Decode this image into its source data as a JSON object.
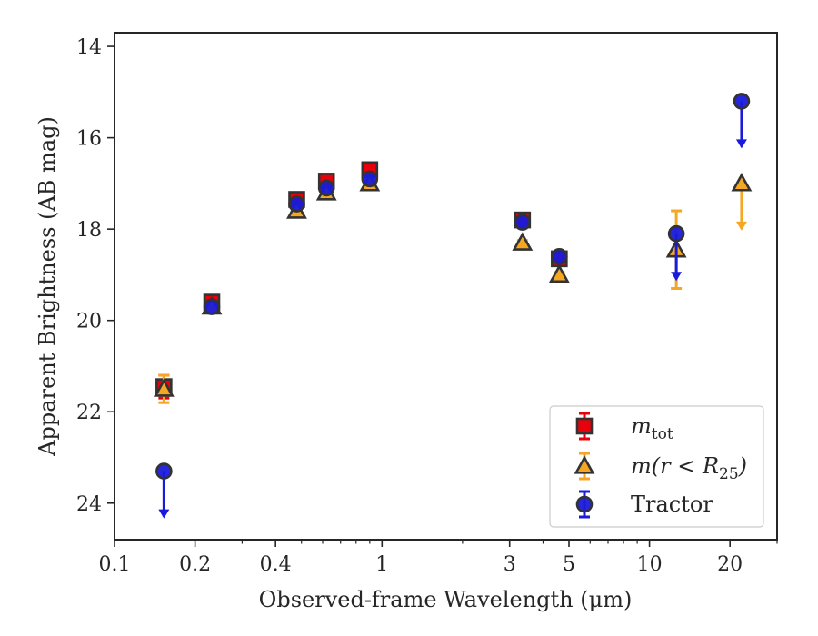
{
  "chart_data": {
    "type": "scatter",
    "title": "",
    "xlabel": "Observed-frame Wavelength (μm)",
    "ylabel": "Apparent Brightness (AB mag)",
    "xscale": "log",
    "xlim": [
      0.1,
      30
    ],
    "ylim": [
      24.8,
      13.7
    ],
    "y_inverted": true,
    "x_ticks": [
      0.1,
      0.2,
      0.4,
      1,
      3,
      5,
      10,
      20
    ],
    "x_tick_labels": [
      "0.1",
      "0.2",
      "0.4",
      "1",
      "3",
      "5",
      "10",
      "20"
    ],
    "y_ticks": [
      14,
      16,
      18,
      20,
      22,
      24
    ],
    "y_tick_labels": [
      "14",
      "16",
      "18",
      "20",
      "22",
      "24"
    ],
    "grid": false,
    "legend_position": "lower-right",
    "series": [
      {
        "name": "m_tot",
        "color": "#e8000b",
        "marker": "square",
        "points": [
          {
            "x": 0.153,
            "y": 21.45,
            "err": 0.25
          },
          {
            "x": 0.231,
            "y": 19.6,
            "err": 0.1
          },
          {
            "x": 0.48,
            "y": 17.35,
            "err": 0.1
          },
          {
            "x": 0.62,
            "y": 16.95,
            "err": 0.1
          },
          {
            "x": 0.9,
            "y": 16.7,
            "err": 0.1
          },
          {
            "x": 3.35,
            "y": 17.8,
            "err": 0.1
          },
          {
            "x": 4.6,
            "y": 18.65,
            "err": 0.15
          }
        ]
      },
      {
        "name": "m(r < R25)",
        "color": "#f5a623",
        "marker": "triangle",
        "points": [
          {
            "x": 0.153,
            "y": 21.5,
            "err": 0.3
          },
          {
            "x": 0.231,
            "y": 19.7,
            "err": 0.05
          },
          {
            "x": 0.48,
            "y": 17.6,
            "err": 0.05
          },
          {
            "x": 0.62,
            "y": 17.2,
            "err": 0.05
          },
          {
            "x": 0.9,
            "y": 17.0,
            "err": 0.05
          },
          {
            "x": 3.35,
            "y": 18.3,
            "err": 0.05
          },
          {
            "x": 4.6,
            "y": 19.0,
            "err": 0.05
          },
          {
            "x": 12.6,
            "y": 18.45,
            "err": 0.85
          },
          {
            "x": 22.1,
            "y": 17.0,
            "upper_limit": true
          }
        ]
      },
      {
        "name": "Tractor",
        "color": "#1a1adb",
        "marker": "circle",
        "points": [
          {
            "x": 0.153,
            "y": 23.3,
            "upper_limit": true
          },
          {
            "x": 0.231,
            "y": 19.7
          },
          {
            "x": 0.48,
            "y": 17.45
          },
          {
            "x": 0.62,
            "y": 17.1
          },
          {
            "x": 0.9,
            "y": 16.9
          },
          {
            "x": 3.35,
            "y": 17.85
          },
          {
            "x": 4.6,
            "y": 18.6
          },
          {
            "x": 12.6,
            "y": 18.1,
            "upper_limit": true
          },
          {
            "x": 22.1,
            "y": 15.2,
            "upper_limit": true
          }
        ]
      }
    ],
    "legend": [
      {
        "label_main": "m",
        "label_sub": "tot",
        "label_rest": ""
      },
      {
        "label_main": "m(r < R",
        "label_sub": "25",
        "label_rest": ")"
      },
      {
        "label_main": "Tractor",
        "label_sub": "",
        "label_rest": ""
      }
    ]
  }
}
